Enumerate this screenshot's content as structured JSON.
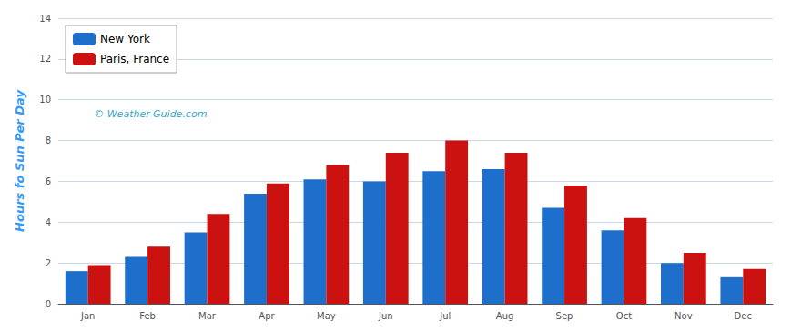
{
  "chart_data": {
    "type": "bar",
    "ylabel": "Hours fo Sun Per Day",
    "annotations": [
      "© Weather-Guide.com"
    ],
    "categories": [
      "Jan",
      "Feb",
      "Mar",
      "Apr",
      "May",
      "Jun",
      "Jul",
      "Aug",
      "Sep",
      "Oct",
      "Nov",
      "Dec"
    ],
    "series": [
      {
        "name": "New York",
        "color": "#1e6fcc",
        "values": [
          1.6,
          2.3,
          3.5,
          5.4,
          6.1,
          6.0,
          6.5,
          6.6,
          4.7,
          3.6,
          2.0,
          1.3
        ]
      },
      {
        "name": "Paris, France",
        "color": "#cc1111",
        "values": [
          1.9,
          2.8,
          4.4,
          5.9,
          6.8,
          7.4,
          8.0,
          7.4,
          5.8,
          4.2,
          2.5,
          1.7
        ]
      }
    ],
    "ylim": [
      0,
      14
    ],
    "yticks": [
      0,
      2,
      4,
      6,
      8,
      10,
      12,
      14
    ],
    "grid": true,
    "legend": "upper left"
  }
}
